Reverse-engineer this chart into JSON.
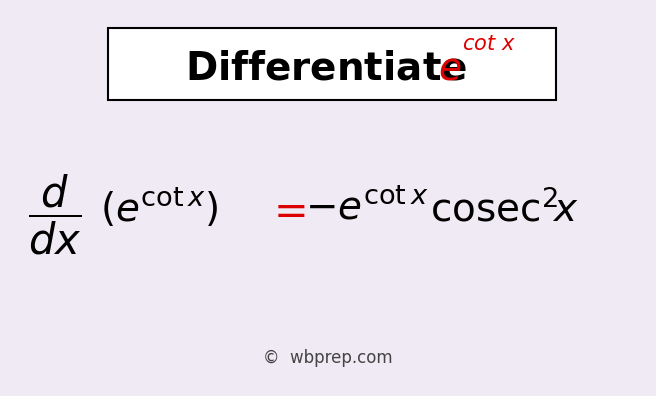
{
  "bg_color": "#f0eaf4",
  "title_box_color": "#ffffff",
  "title_box_edge": "#000000",
  "black_color": "#000000",
  "red_color": "#dd0000",
  "footer_color": "#444444",
  "formula_footer": "©  wbprep.com",
  "fig_width": 6.56,
  "fig_height": 3.96,
  "dpi": 100
}
